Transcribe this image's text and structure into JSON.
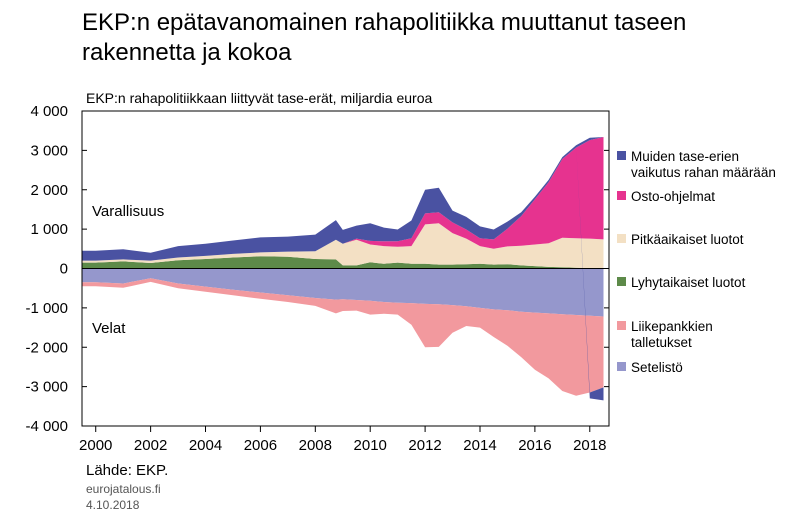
{
  "title": "EKP:n epätavanomainen rahapolitiikka muuttanut taseen rakennetta ja kokoa",
  "subtitle": "EKP:n rahapolitiikkaan liittyvät tase-erät, miljardia euroa",
  "source": "Lähde: EKP.",
  "site": "eurojatalous.fi",
  "date": "4.10.2018",
  "colors": {
    "muiden": "#4a52a2",
    "osto": "#e6338f",
    "pitka": "#f3e0c4",
    "lyhyt": "#5d8a49",
    "liike": "#f2999e",
    "setelisto": "#9597cc"
  },
  "chart_data": {
    "type": "area",
    "annotations": [
      "Varallisuus",
      "Velat"
    ],
    "xlim": [
      1999.5,
      2018.7
    ],
    "ylim": [
      -4000,
      4000
    ],
    "x_ticks": [
      2000,
      2002,
      2004,
      2006,
      2008,
      2010,
      2012,
      2014,
      2016,
      2018
    ],
    "x_tick_labels": [
      "2000",
      "2002",
      "2004",
      "2006",
      "2008",
      "2010",
      "2012",
      "2014",
      "2016",
      "2018"
    ],
    "y_ticks": [
      4000,
      3000,
      2000,
      1000,
      0,
      -1000,
      -2000,
      -3000,
      -4000
    ],
    "y_tick_labels": [
      "4 000",
      "3 000",
      "2 000",
      "1 000",
      "0",
      "-1 000",
      "-2 000",
      "-3 000",
      "-4 000"
    ],
    "x": [
      1999.5,
      2000,
      2001,
      2002,
      2003,
      2004,
      2005,
      2006,
      2007,
      2008,
      2008.75,
      2009,
      2009.5,
      2010,
      2010.5,
      2011,
      2011.5,
      2012,
      2012.5,
      2013,
      2013.5,
      2014,
      2014.5,
      2015,
      2015.5,
      2016,
      2016.5,
      2017,
      2017.5,
      2018,
      2018.5
    ],
    "series": [
      {
        "name": "Lyhytaikaiset luotot",
        "color_key": "lyhyt",
        "values": [
          150,
          150,
          180,
          140,
          210,
          240,
          280,
          310,
          300,
          240,
          230,
          80,
          80,
          160,
          120,
          150,
          120,
          120,
          100,
          100,
          110,
          120,
          100,
          110,
          80,
          60,
          40,
          30,
          20,
          10,
          10
        ]
      },
      {
        "name": "Pitkäaikaiset luotot",
        "color_key": "pitka",
        "values": [
          50,
          50,
          50,
          60,
          70,
          80,
          90,
          100,
          130,
          200,
          500,
          550,
          650,
          450,
          450,
          400,
          450,
          1000,
          1050,
          800,
          650,
          450,
          400,
          450,
          500,
          550,
          600,
          750,
          750,
          750,
          730
        ]
      },
      {
        "name": "Osto-ohjelmat",
        "color_key": "osto",
        "values": [
          0,
          0,
          0,
          0,
          0,
          0,
          0,
          0,
          0,
          0,
          0,
          0,
          30,
          90,
          120,
          140,
          200,
          280,
          280,
          270,
          230,
          200,
          240,
          450,
          750,
          1150,
          1550,
          2000,
          2300,
          2500,
          2600
        ]
      },
      {
        "name": "Muiden tase-erien vaikutus rahan määrään",
        "color_key": "muiden",
        "values": [
          250,
          250,
          260,
          200,
          290,
          310,
          340,
          380,
          380,
          420,
          500,
          350,
          330,
          450,
          350,
          300,
          450,
          600,
          620,
          300,
          320,
          300,
          250,
          180,
          100,
          60,
          60,
          50,
          60,
          60,
          0
        ]
      },
      {
        "name": "Setelistö",
        "color_key": "setelisto",
        "values": [
          -350,
          -350,
          -380,
          -250,
          -380,
          -460,
          -540,
          -610,
          -680,
          -750,
          -790,
          -780,
          -800,
          -820,
          -850,
          -870,
          -880,
          -900,
          -910,
          -930,
          -960,
          -1000,
          -1040,
          -1060,
          -1100,
          -1120,
          -1140,
          -1160,
          -1180,
          -1200,
          -1220
        ]
      },
      {
        "name": "Liikepankkien talletukset",
        "color_key": "liike",
        "values": [
          -100,
          -100,
          -110,
          -90,
          -120,
          -130,
          -140,
          -160,
          -170,
          -200,
          -350,
          -300,
          -270,
          -350,
          -300,
          -300,
          -550,
          -1100,
          -1080,
          -700,
          -500,
          -500,
          -700,
          -900,
          -1150,
          -1450,
          -1650,
          -1950,
          -2050,
          -1950,
          -1800
        ]
      },
      {
        "name": "Muiden tase-erien vaikutus rahan määrään",
        "color_key": "muiden",
        "legend": false,
        "values": [
          0,
          0,
          0,
          0,
          0,
          0,
          0,
          0,
          0,
          0,
          0,
          0,
          0,
          0,
          0,
          0,
          0,
          0,
          0,
          0,
          0,
          0,
          0,
          0,
          0,
          0,
          0,
          0,
          0,
          -150,
          -330
        ]
      }
    ],
    "legend_order": [
      "Muiden tase-erien vaikutus rahan määrään",
      "Osto-ohjelmat",
      "Pitkäaikaiset luotot",
      "Lyhytaikaiset luotot",
      "Liikepankkien talletukset",
      "Setelistö"
    ],
    "legend_placement": "right",
    "grid": false
  }
}
